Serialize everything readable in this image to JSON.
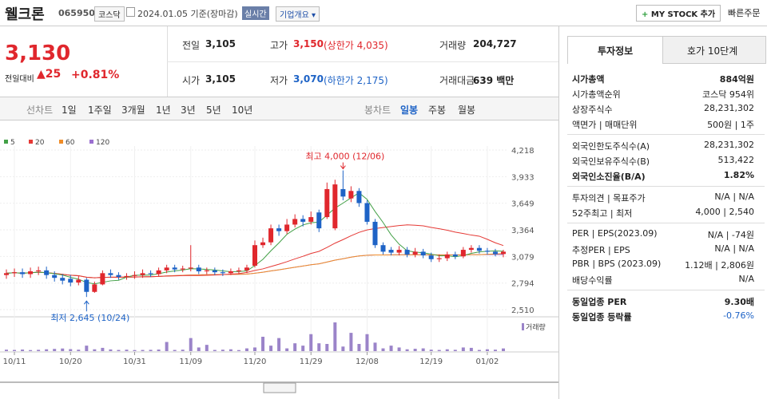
{
  "header": {
    "name": "웰크론",
    "code": "065950",
    "market": "코스닥",
    "date": "2024.01.05 기준(장마감)",
    "realtime": "실시간",
    "overview": "기업개요",
    "mystock": "MY STOCK 추가",
    "quick": "빠른주문"
  },
  "price": {
    "current": "3,130",
    "change_label": "전일대비",
    "change": "25",
    "change_pct": "+0.81%"
  },
  "summary": [
    {
      "label": "전일",
      "value": "3,105"
    },
    {
      "label": "고가",
      "value": "3,150",
      "extra": "(상한가 4,035)"
    },
    {
      "label": "거래량",
      "value": "204,727"
    },
    {
      "label": "시가",
      "value": "3,105"
    },
    {
      "label": "저가",
      "value": "3,070",
      "extra": "(하한가 2,175)"
    },
    {
      "label": "거래대금",
      "value": "639 백만"
    }
  ],
  "periods": [
    "선차트",
    "1일",
    "1주일",
    "3개월",
    "1년",
    "3년",
    "5년",
    "10년"
  ],
  "candle_tabs": [
    "봉차트",
    "일봉",
    "주봉",
    "월봉"
  ],
  "chart_data": {
    "type": "candlestick",
    "ma": [
      {
        "name": "5",
        "color": "#43a047",
        "window": 5
      },
      {
        "name": "20",
        "color": "#e53935",
        "window": 20
      },
      {
        "name": "60",
        "color": "#f08c28",
        "window": 60
      },
      {
        "name": "120",
        "color": "#9b6fd0",
        "window": 120
      }
    ],
    "open": [
      2880,
      2900,
      2910,
      2890,
      2920,
      2930,
      2880,
      2850,
      2840,
      2800,
      2830,
      2700,
      2780,
      2900,
      2880,
      2860,
      2870,
      2880,
      2900,
      2890,
      2930,
      2960,
      2940,
      2950,
      2960,
      2920,
      2930,
      2910,
      2900,
      2920,
      2930,
      2980,
      3200,
      3230,
      3380,
      3350,
      3420,
      3480,
      3450,
      3550,
      3500,
      3380,
      3800,
      3700,
      3780,
      3650,
      3450,
      3200,
      3150,
      3120,
      3150,
      3100,
      3130,
      3090,
      3050,
      3060,
      3100,
      3080,
      3150,
      3170,
      3140,
      3130,
      3105
    ],
    "high": [
      2940,
      2950,
      2950,
      2960,
      2970,
      2970,
      2920,
      2890,
      2880,
      2870,
      2850,
      2810,
      2930,
      2940,
      2910,
      2900,
      2920,
      2940,
      2930,
      2960,
      2990,
      2990,
      2980,
      3200,
      2990,
      2960,
      2960,
      2940,
      2950,
      2960,
      2990,
      3250,
      3280,
      3420,
      3420,
      3480,
      3530,
      3520,
      3560,
      3580,
      3870,
      3900,
      4000,
      3830,
      3810,
      3680,
      3480,
      3230,
      3180,
      3190,
      3180,
      3170,
      3160,
      3120,
      3100,
      3130,
      3130,
      3180,
      3200,
      3200,
      3170,
      3160,
      3150
    ],
    "low": [
      2840,
      2860,
      2850,
      2850,
      2880,
      2840,
      2810,
      2780,
      2760,
      2770,
      2645,
      2690,
      2770,
      2850,
      2830,
      2830,
      2840,
      2850,
      2860,
      2870,
      2900,
      2910,
      2910,
      2920,
      2890,
      2890,
      2880,
      2870,
      2880,
      2890,
      2900,
      2960,
      3170,
      3200,
      3300,
      3320,
      3390,
      3400,
      3420,
      3340,
      3480,
      3360,
      3680,
      3660,
      3610,
      3420,
      3170,
      3100,
      3090,
      3090,
      3070,
      3070,
      3060,
      3020,
      3020,
      3030,
      3050,
      3060,
      3120,
      3110,
      3100,
      3080,
      3070
    ],
    "close": [
      2900,
      2910,
      2890,
      2920,
      2930,
      2880,
      2850,
      2820,
      2800,
      2830,
      2700,
      2780,
      2900,
      2880,
      2860,
      2870,
      2880,
      2900,
      2890,
      2930,
      2960,
      2940,
      2950,
      2960,
      2920,
      2930,
      2910,
      2900,
      2920,
      2930,
      2960,
      3200,
      3230,
      3380,
      3350,
      3420,
      3480,
      3450,
      3500,
      3380,
      3800,
      3850,
      3720,
      3780,
      3650,
      3450,
      3200,
      3130,
      3120,
      3150,
      3100,
      3130,
      3090,
      3050,
      3060,
      3100,
      3080,
      3150,
      3170,
      3140,
      3130,
      3105,
      3130
    ],
    "volume": [
      110000,
      90000,
      120000,
      80000,
      100000,
      140000,
      170000,
      200000,
      150000,
      110000,
      420000,
      140000,
      250000,
      130000,
      90000,
      110000,
      80000,
      90000,
      100000,
      120000,
      700000,
      90000,
      110000,
      1000000,
      280000,
      480000,
      90000,
      110000,
      140000,
      80000,
      210000,
      280000,
      1100000,
      420000,
      1000000,
      210000,
      600000,
      420000,
      1300000,
      600000,
      550000,
      2200000,
      350000,
      1400000,
      550000,
      1300000,
      650000,
      210000,
      420000,
      280000,
      140000,
      180000,
      210000,
      110000,
      90000,
      140000,
      100000,
      280000,
      250000,
      90000,
      140000,
      110000,
      204727
    ],
    "ylim": [
      2510,
      4218
    ],
    "yticks": [
      {
        "value": 4218,
        "label": "4,218"
      },
      {
        "value": 3933,
        "label": "3,933"
      },
      {
        "value": 3649,
        "label": "3,649"
      },
      {
        "value": 3364,
        "label": "3,364"
      },
      {
        "value": 3079,
        "label": "3,079"
      },
      {
        "value": 2794,
        "label": "2,794"
      },
      {
        "value": 2510,
        "label": "2,510"
      }
    ],
    "xticks": [
      {
        "value": 1,
        "label": "10/11"
      },
      {
        "value": 8,
        "label": "10/20"
      },
      {
        "value": 16,
        "label": "10/31"
      },
      {
        "value": 23,
        "label": "11/09"
      },
      {
        "value": 31,
        "label": "11/20"
      },
      {
        "value": 38,
        "label": "11/29"
      },
      {
        "value": 45,
        "label": "12/08"
      },
      {
        "value": 53,
        "label": "12/19"
      },
      {
        "value": 60,
        "label": "01/02"
      }
    ],
    "annotations": [
      {
        "text": "최고 4,000 (12/06)",
        "index": 42,
        "value": 4000
      },
      {
        "text": "최저 2,645 (10/24)",
        "index": 10,
        "value": 2645
      }
    ],
    "volume_label": "거래량"
  },
  "info_tabs": [
    "투자정보",
    "호가 10단계"
  ],
  "info": [
    [
      {
        "label": "시가총액",
        "value": "884억원"
      },
      {
        "label": "시가총액순위",
        "value": "코스닥 954위"
      },
      {
        "label": "상장주식수",
        "value": "28,231,302"
      },
      {
        "label": "액면가 | 매매단위",
        "value": "500원 | 1주"
      }
    ],
    [
      {
        "label": "외국인한도주식수(A)",
        "value": "28,231,302"
      },
      {
        "label": "외국인보유주식수(B)",
        "value": "513,422"
      },
      {
        "label": "외국인소진율(B/A)",
        "value": "1.82%"
      }
    ],
    [
      {
        "label": "투자의견 | 목표주가",
        "value": "N/A | N/A"
      },
      {
        "label": "52주최고 | 최저",
        "value": "4,000 | 2,540"
      }
    ],
    [
      {
        "label": "PER | EPS(2023.09)",
        "value": "N/A | -74원"
      },
      {
        "label": "추정PER | EPS",
        "value": "N/A | N/A"
      },
      {
        "label": "PBR | BPS (2023.09)",
        "value": "1.12배 | 2,806원"
      },
      {
        "label": "배당수익률",
        "value": "N/A"
      }
    ],
    [
      {
        "label": "동일업종 PER",
        "value": "9.30배"
      },
      {
        "label": "동일업종 등락률",
        "value": "-0.76%"
      }
    ]
  ]
}
